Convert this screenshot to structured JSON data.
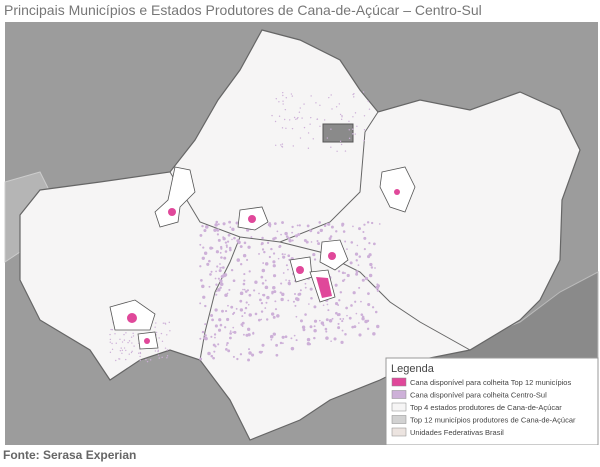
{
  "header": {
    "title": "Principais Municípios e Estados Produtores de Cana-de-Açúcar – Centro-Sul"
  },
  "legend": {
    "title": "Legenda",
    "items": [
      {
        "label": "Cana disponível para colheita Top 12 municípios",
        "color": "#e0489a"
      },
      {
        "label": "Cana disponível para colheita Centro-Sul",
        "color": "#cdb0d8"
      },
      {
        "label": "Top 4 estados produtores de Cana-de-Açúcar",
        "color": "#f6f5f5"
      },
      {
        "label": "Top 12 municípios produtores de Cana-de-Açúcar",
        "color": "#d2d2d2"
      },
      {
        "label": "Unidades Federativas Brasil",
        "color": "#ece4e0"
      }
    ]
  },
  "footer": {
    "source": "Fonte: Serasa Experian"
  }
}
